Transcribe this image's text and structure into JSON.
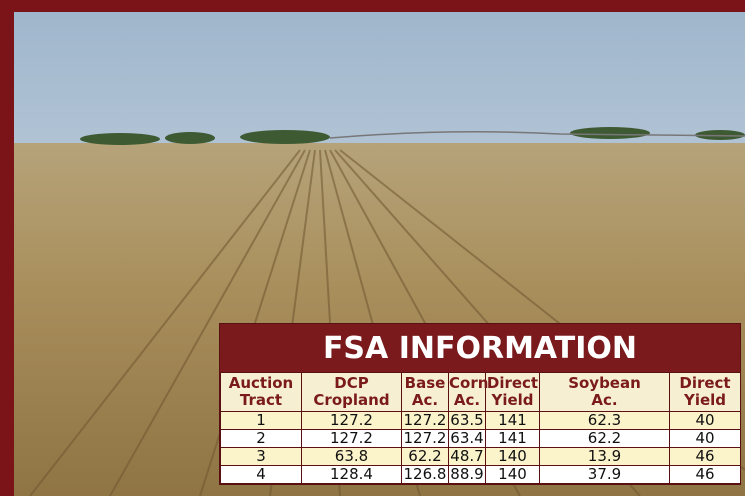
{
  "table": {
    "title": "FSA INFORMATION",
    "header": [
      [
        "Auction",
        "Tract"
      ],
      [
        "DCP",
        "Cropland"
      ],
      [
        "Base",
        "Ac."
      ],
      [
        "Corn",
        "Ac."
      ],
      [
        "Direct",
        "Yield"
      ],
      [
        "Soybean",
        "Ac."
      ],
      [
        "Direct",
        "Yield"
      ]
    ],
    "rows": [
      [
        "1",
        "127.2",
        "127.2",
        "63.5",
        "141",
        "62.3",
        "40"
      ],
      [
        "2",
        "127.2",
        "127.2",
        "63.4",
        "141",
        "62.2",
        "40"
      ],
      [
        "3",
        "63.8",
        "62.2",
        "48.7",
        "140",
        "13.9",
        "46"
      ],
      [
        "4",
        "128.4",
        "126.8",
        "88.9",
        "140",
        "37.9",
        "46"
      ]
    ]
  }
}
